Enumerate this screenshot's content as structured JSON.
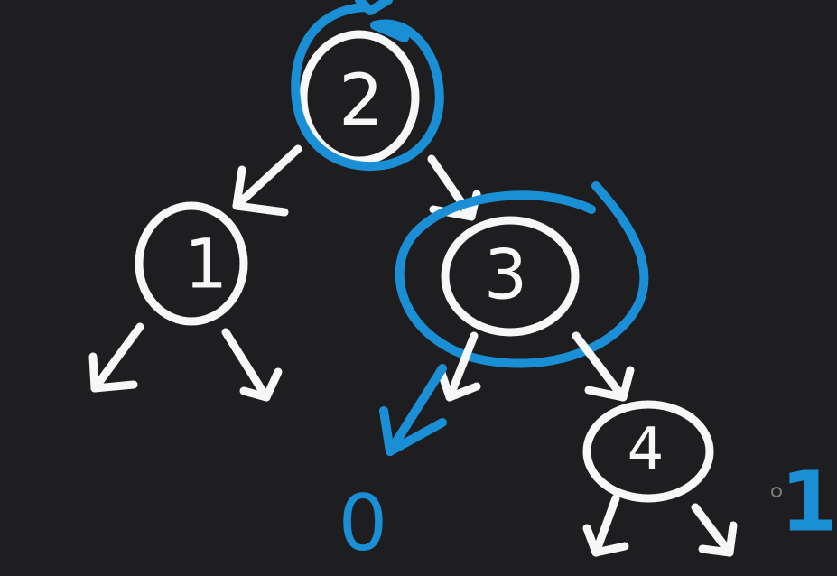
{
  "tree": {
    "nodes": [
      {
        "id": "n2",
        "label": "2",
        "highlighted": true
      },
      {
        "id": "n1",
        "label": "1",
        "highlighted": false
      },
      {
        "id": "n3",
        "label": "3",
        "highlighted": true
      },
      {
        "id": "n4",
        "label": "4",
        "highlighted": false
      }
    ],
    "edges": [
      {
        "from": "n2",
        "to": "n1"
      },
      {
        "from": "n2",
        "to": "n3"
      },
      {
        "from": "n3",
        "to": "n4"
      }
    ]
  },
  "annotations": {
    "left_null_of_3": "0",
    "right_of_4": "1"
  },
  "colors": {
    "background": "#1e1e21",
    "ink": "#f7f7f7",
    "highlight": "#1a8fd6"
  }
}
